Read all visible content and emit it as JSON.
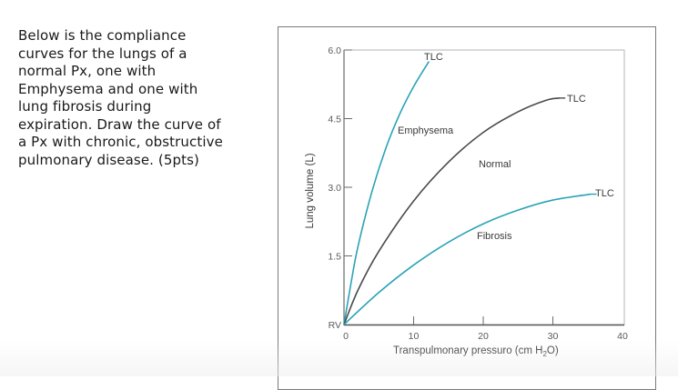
{
  "question": {
    "text": "Below is the compliance\ncurves for the lungs of a\nnormal Px, one with\nEmphysema and one with\nlung fibrosis during\nexpiration.  Draw the curve of\na Px with chronic, obstructive\npulmonary disease. (5pts)"
  },
  "colors": {
    "teal": "#2aa3b5",
    "normal": "#4a4a4a",
    "axis": "#9a9a9a",
    "text": "#3a3a3a"
  },
  "chart_data": {
    "type": "line",
    "title": "",
    "xlabel": "Transpulmonary pressure (cm H2O)",
    "xlabel_parts": {
      "main": "Transpulmonary pressuro  (cm H",
      "sub": "2",
      "end": "O)"
    },
    "ylabel": "Lung volume (L)",
    "xlim": [
      0,
      40
    ],
    "ylim": [
      0,
      6.0
    ],
    "x_ticks": [
      "0",
      "10",
      "20",
      "30",
      "40"
    ],
    "y_ticks": [
      "RV",
      "1.5",
      "3.0",
      "4.5",
      "6.0"
    ],
    "grid": false,
    "legend": "none (inline labels)",
    "series": [
      {
        "name": "Emphysema",
        "color": "#2aa3b5",
        "endpoint_label": "TLC",
        "points": [
          [
            0,
            0
          ],
          [
            1,
            0.9
          ],
          [
            2,
            1.7
          ],
          [
            4,
            2.9
          ],
          [
            6,
            3.85
          ],
          [
            8,
            4.6
          ],
          [
            10,
            5.2
          ],
          [
            12.2,
            5.75
          ]
        ]
      },
      {
        "name": "Normal",
        "color": "#4a4a4a",
        "endpoint_label": "TLC",
        "points": [
          [
            0,
            0
          ],
          [
            2,
            0.75
          ],
          [
            5,
            1.6
          ],
          [
            10,
            2.7
          ],
          [
            15,
            3.55
          ],
          [
            20,
            4.2
          ],
          [
            25,
            4.65
          ],
          [
            29,
            4.9
          ],
          [
            31,
            4.95
          ]
        ]
      },
      {
        "name": "Fibrosis",
        "color": "#2aa3b5",
        "endpoint_label": "TLC",
        "points": [
          [
            0,
            0
          ],
          [
            5,
            0.7
          ],
          [
            10,
            1.3
          ],
          [
            15,
            1.8
          ],
          [
            20,
            2.2
          ],
          [
            25,
            2.5
          ],
          [
            30,
            2.72
          ],
          [
            35.5,
            2.85
          ]
        ]
      }
    ],
    "annotations": [
      "TLC",
      "TLC",
      "TLC",
      "Emphysema",
      "Normal",
      "Fibrosis"
    ]
  }
}
